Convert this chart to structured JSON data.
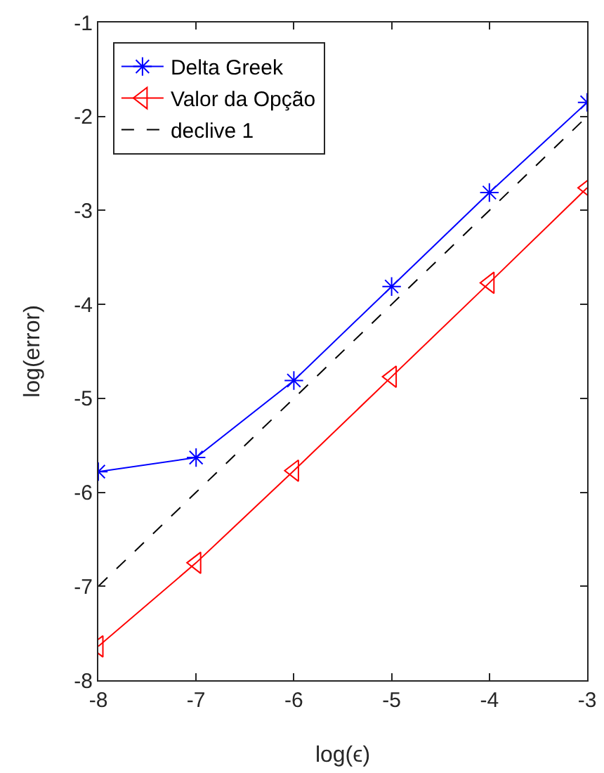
{
  "chart_data": {
    "type": "line",
    "xlabel": "log(ϵ)",
    "ylabel": "log(error)",
    "x": [
      -8,
      -7,
      -6,
      -5,
      -4,
      -3
    ],
    "xlim": [
      -8,
      -3
    ],
    "xticks": [
      -8,
      -7,
      -6,
      -5,
      -4,
      -3
    ],
    "ylim": [
      -8,
      -1
    ],
    "yticks": [
      -8,
      -7,
      -6,
      -5,
      -4,
      -3,
      -2,
      -1
    ],
    "grid": false,
    "legend": "top left",
    "series": [
      {
        "name": "Delta Greek",
        "color": "#0000ff",
        "marker": "cross",
        "line_style": "solid",
        "values": [
          -5.78,
          -5.63,
          -4.81,
          -3.81,
          -2.81,
          -1.85
        ]
      },
      {
        "name": "Valor da Opção",
        "color": "#ff0000",
        "marker": "triangle",
        "line_style": "solid",
        "values": [
          -7.64,
          -6.75,
          -5.77,
          -4.77,
          -3.77,
          -2.76
        ]
      },
      {
        "name": "declive 1",
        "color": "#000000",
        "marker": "none",
        "line_style": "dashed",
        "values": [
          -7,
          -6,
          -5,
          -4,
          -3,
          -2
        ]
      }
    ]
  }
}
